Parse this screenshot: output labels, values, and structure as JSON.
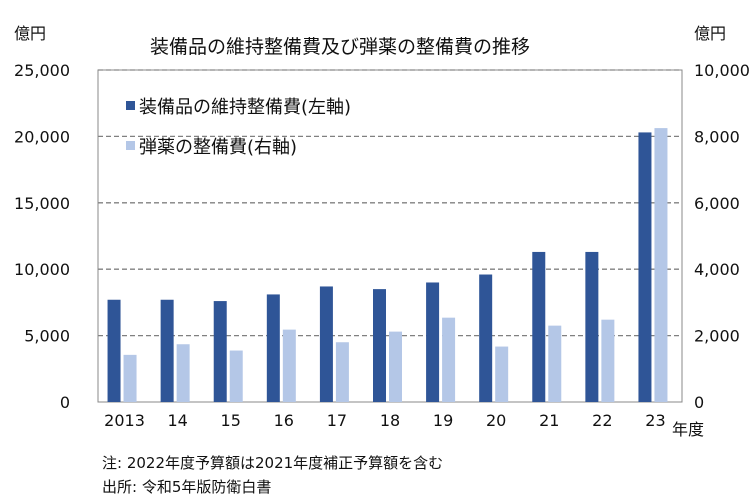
{
  "chart_data": {
    "type": "bar",
    "title": "装備品の維持整備費及び弾薬の整備費の推移",
    "ylabel_left": "億円",
    "ylabel_right": "億円",
    "xlabel": "年度",
    "categories": [
      "2013",
      "14",
      "15",
      "16",
      "17",
      "18",
      "19",
      "20",
      "21",
      "22",
      "23"
    ],
    "ylim_left": [
      0,
      25000
    ],
    "ylim_right": [
      0,
      10000
    ],
    "yticks_left": [
      "0",
      "5,000",
      "10,000",
      "15,000",
      "20,000",
      "25,000"
    ],
    "yticks_right": [
      "0",
      "2,000",
      "4,000",
      "6,000",
      "8,000",
      "10,000"
    ],
    "grid": true,
    "legend_placement": "top-left",
    "series": [
      {
        "name": "装備品の維持整備費(左軸)",
        "axis": "left",
        "color": "#2f5597",
        "values": [
          7700,
          7700,
          7600,
          8100,
          8700,
          8500,
          9000,
          9600,
          11300,
          11300,
          20300
        ]
      },
      {
        "name": "弾薬の整備費(右軸)",
        "axis": "right",
        "color": "#b4c7e7",
        "values": [
          1420,
          1740,
          1550,
          2180,
          1800,
          2120,
          2540,
          1670,
          2300,
          2480,
          8250
        ]
      }
    ]
  },
  "notes": [
    "注: 2022年度予算額は2021年度補正予算額を含む",
    "出所: 令和5年版防衛白書"
  ]
}
